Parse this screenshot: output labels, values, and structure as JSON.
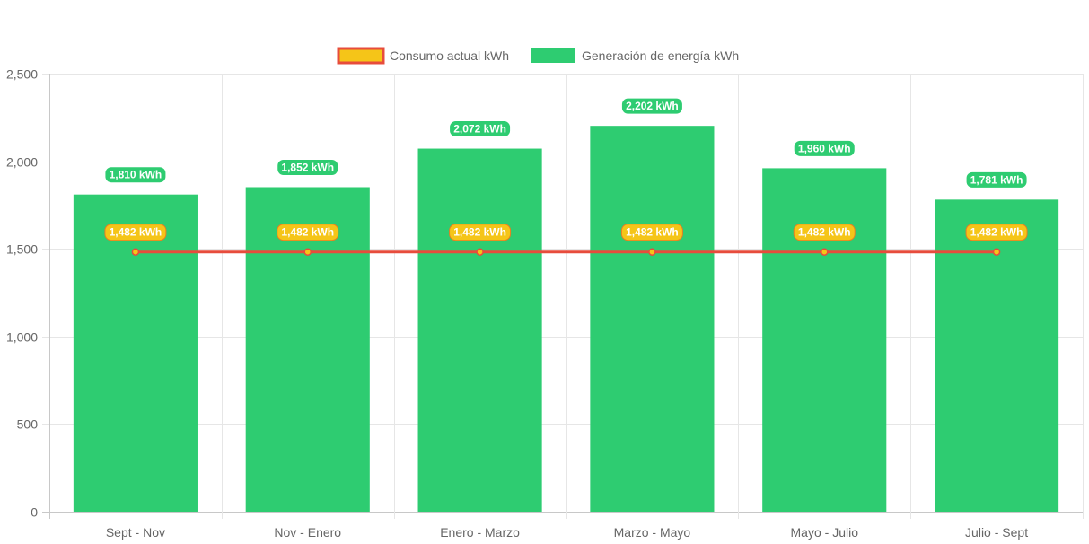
{
  "chart_data": {
    "type": "bar",
    "title": "",
    "xlabel": "",
    "ylabel": "",
    "categories": [
      "Sept - Nov",
      "Nov - Enero",
      "Enero - Marzo",
      "Marzo - Mayo",
      "Mayo - Julio",
      "Julio - Sept"
    ],
    "ylim": [
      0,
      2500
    ],
    "yticks": [
      0,
      500,
      1000,
      1500,
      2000,
      2500
    ],
    "ytick_labels": [
      "0",
      "500",
      "1,000",
      "1,500",
      "2,000",
      "2,500"
    ],
    "grid": true,
    "legend_position": "top-center",
    "series": [
      {
        "name": "Consumo actual kWh",
        "type": "line",
        "values": [
          1482,
          1482,
          1482,
          1482,
          1482,
          1482
        ],
        "labels": [
          "1,482 kWh",
          "1,482 kWh",
          "1,482 kWh",
          "1,482 kWh",
          "1,482 kWh",
          "1,482 kWh"
        ],
        "color": "#f5c518",
        "border_color": "#e74c3c"
      },
      {
        "name": "Generación de energía kWh",
        "type": "bar",
        "values": [
          1810,
          1852,
          2072,
          2202,
          1960,
          1781
        ],
        "labels": [
          "1,810 kWh",
          "1,852 kWh",
          "2,072 kWh",
          "2,202 kWh",
          "1,960 kWh",
          "1,781 kWh"
        ],
        "color": "#2ecc71"
      }
    ]
  }
}
